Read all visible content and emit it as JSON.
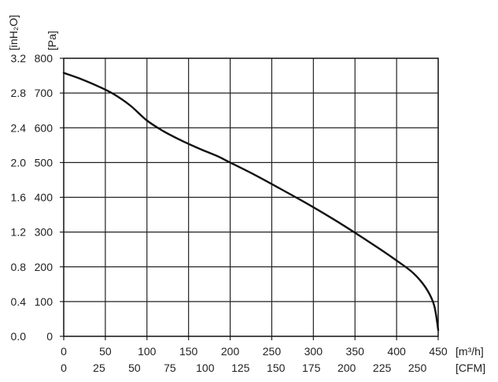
{
  "chart_data": {
    "type": "line",
    "x_unit_primary": "[m³/h]",
    "x_unit_secondary": "[CFM]",
    "y_unit_left": "[inH₂O]",
    "y_unit_right": "[Pa]",
    "xlim": [
      0,
      450
    ],
    "ylim": [
      0,
      800
    ],
    "x_ticks": [
      0,
      50,
      100,
      150,
      200,
      250,
      300,
      350,
      400,
      450
    ],
    "x_tick_labels_secondary": [
      "0",
      "25",
      "50",
      "75",
      "100",
      "125",
      "150",
      "175",
      "200",
      "225",
      "250"
    ],
    "x_ticks_secondary_positions": [
      0,
      42.5,
      85,
      127.5,
      170,
      212.5,
      255,
      297.5,
      340,
      382.5,
      425
    ],
    "y_ticks": [
      0,
      100,
      200,
      300,
      400,
      500,
      600,
      700,
      800
    ],
    "y_tick_labels_inh2o": [
      "0.0",
      "0.4",
      "0.8",
      "1.2",
      "1.6",
      "2.0",
      "2.4",
      "2.8",
      "3.2"
    ],
    "grid": true,
    "series": [
      {
        "color": "#111111",
        "x": [
          0,
          20,
          40,
          60,
          80,
          100,
          120,
          140,
          160,
          185,
          200,
          230,
          260,
          290,
          320,
          350,
          380,
          400,
          420,
          435,
          445,
          450
        ],
        "y": [
          758,
          741,
          721,
          697,
          664,
          621,
          590,
          565,
          543,
          518,
          500,
          464,
          425,
          385,
          343,
          298,
          251,
          218,
          182,
          140,
          90,
          18
        ]
      }
    ]
  }
}
